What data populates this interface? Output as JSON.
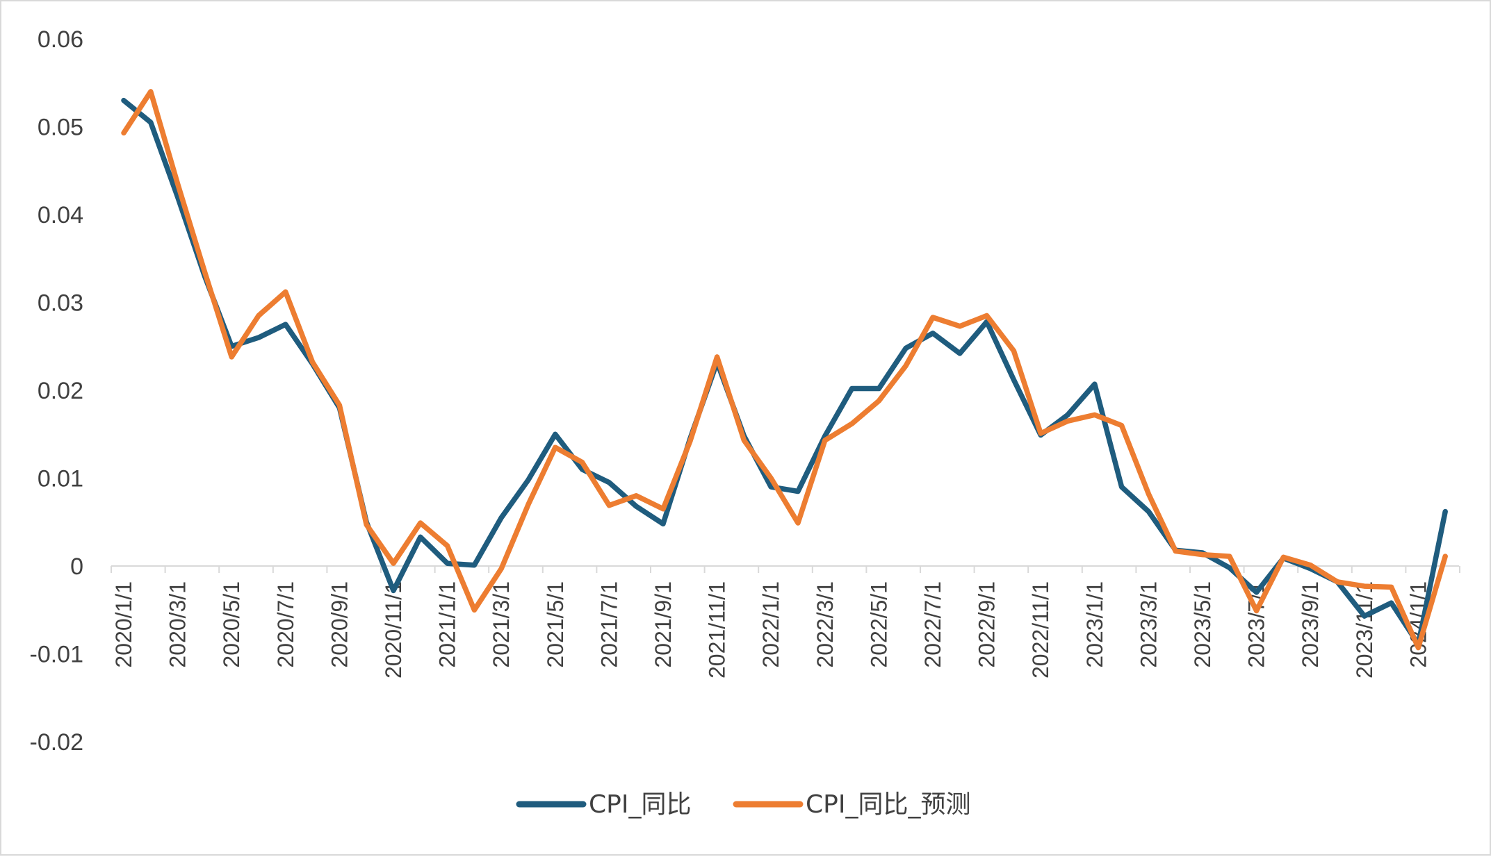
{
  "chart_data": {
    "type": "line",
    "title": "",
    "xlabel": "",
    "ylabel": "",
    "ylim": [
      -0.02,
      0.06
    ],
    "y_ticks": [
      "0.06",
      "0.05",
      "0.04",
      "0.03",
      "0.02",
      "0.01",
      "0",
      "-0.01",
      "-0.02"
    ],
    "y_tick_values": [
      0.06,
      0.05,
      0.04,
      0.03,
      0.02,
      0.01,
      0,
      -0.01,
      -0.02
    ],
    "grid": false,
    "legend_position": "bottom",
    "x": [
      "2020/1/1",
      "2020/2/1",
      "2020/3/1",
      "2020/4/1",
      "2020/5/1",
      "2020/6/1",
      "2020/7/1",
      "2020/8/1",
      "2020/9/1",
      "2020/10/1",
      "2020/11/1",
      "2020/12/1",
      "2021/1/1",
      "2021/2/1",
      "2021/3/1",
      "2021/4/1",
      "2021/5/1",
      "2021/6/1",
      "2021/7/1",
      "2021/8/1",
      "2021/9/1",
      "2021/10/1",
      "2021/11/1",
      "2021/12/1",
      "2022/1/1",
      "2022/2/1",
      "2022/3/1",
      "2022/4/1",
      "2022/5/1",
      "2022/6/1",
      "2022/7/1",
      "2022/8/1",
      "2022/9/1",
      "2022/10/1",
      "2022/11/1",
      "2022/12/1",
      "2023/1/1",
      "2023/2/1",
      "2023/3/1",
      "2023/4/1",
      "2023/5/1",
      "2023/6/1",
      "2023/7/1",
      "2023/8/1",
      "2023/9/1",
      "2023/10/1",
      "2023/11/1",
      "2023/12/1",
      "2024/1/1",
      "2024/2/1"
    ],
    "x_tick_labels": [
      "2020/1/1",
      "2020/3/1",
      "2020/5/1",
      "2020/7/1",
      "2020/9/1",
      "2020/11/1",
      "2021/1/1",
      "2021/3/1",
      "2021/5/1",
      "2021/7/1",
      "2021/9/1",
      "2021/11/1",
      "2022/1/1",
      "2022/3/1",
      "2022/5/1",
      "2022/7/1",
      "2022/9/1",
      "2022/11/1",
      "2023/1/1",
      "2023/3/1",
      "2023/5/1",
      "2023/7/1",
      "2023/9/1",
      "2023/11/1",
      "2024/1/1"
    ],
    "series": [
      {
        "name": "CPI_同比",
        "color": "#1f5c7e",
        "values": [
          0.053,
          0.0505,
          0.042,
          0.033,
          0.025,
          0.026,
          0.0275,
          0.023,
          0.018,
          0.005,
          -0.0028,
          0.0033,
          0.0003,
          0.0001,
          0.0055,
          0.0098,
          0.015,
          0.011,
          0.0095,
          0.0068,
          0.0048,
          0.0145,
          0.0232,
          0.0148,
          0.009,
          0.0085,
          0.0148,
          0.0202,
          0.0202,
          0.0248,
          0.0265,
          0.0242,
          0.0278,
          0.0212,
          0.0149,
          0.0172,
          0.0207,
          0.009,
          0.0062,
          0.0018,
          0.0015,
          -0.0002,
          -0.003,
          0.0009,
          -0.0003,
          -0.0018,
          -0.0057,
          -0.0042,
          -0.0089,
          0.0062
        ]
      },
      {
        "name": "CPI_同比_预测",
        "color": "#ed7d31",
        "values": [
          0.0493,
          0.054,
          0.0435,
          0.0335,
          0.0238,
          0.0285,
          0.0312,
          0.0232,
          0.0183,
          0.0047,
          0.0003,
          0.0049,
          0.0023,
          -0.005,
          -0.0003,
          0.007,
          0.0135,
          0.0118,
          0.0069,
          0.008,
          0.0065,
          0.0142,
          0.0238,
          0.0143,
          0.01,
          0.0049,
          0.0143,
          0.0162,
          0.0188,
          0.0228,
          0.0283,
          0.0273,
          0.0285,
          0.0245,
          0.0151,
          0.0165,
          0.0172,
          0.016,
          0.0082,
          0.0017,
          0.0013,
          0.0011,
          -0.0051,
          0.001,
          0.0001,
          -0.0018,
          -0.0023,
          -0.0024,
          -0.0093,
          0.0011
        ]
      }
    ]
  }
}
